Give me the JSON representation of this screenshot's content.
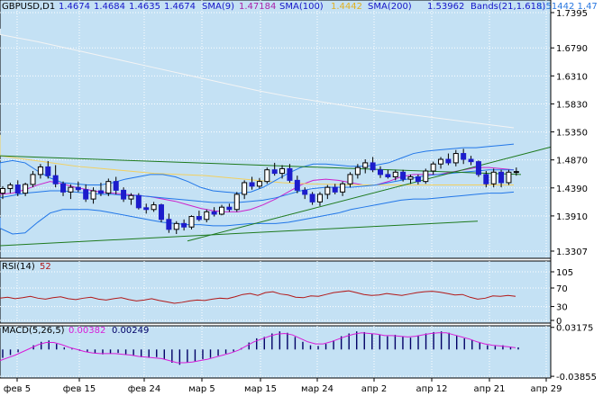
{
  "colors": {
    "chart_bg": "#c4e1f4",
    "panel_bg": "#ffffff",
    "axis_bg": "#ffffff",
    "grid": "#ffffff",
    "candle_bull": "#ffffff",
    "candle_bear": "#1c1ccc",
    "candle_outline": "#000000",
    "sma9": "#cc22cc",
    "sma100": "#f2d060",
    "sma200": "#f4f4f4",
    "bands": "#2277e8",
    "trendline": "#1e7a1e",
    "rsi": "#b21818",
    "macd_main": "#d81bd8",
    "macd_signal_hist": "#000066",
    "text_dark": "#000000",
    "text_blue": "#1515c8"
  },
  "header": {
    "symbol": "GBPUSD,D1",
    "ohlc": [
      "1.4674",
      "1.4684",
      "1.4635",
      "1.4674"
    ],
    "sma9_label": "SMA(9)",
    "sma9_value": "1.47184",
    "sma100_label": "SMA(100)",
    "sma100_value": "1.4442",
    "sma200_label": "SMA(200)",
    "sma200_value": "1.53962",
    "bands_label": "Bands(21,1.618)",
    "bands_values": "1.51442 1.47"
  },
  "rsi_panel": {
    "label": "RSI(14)",
    "value": "52"
  },
  "macd_panel": {
    "label": "MACD(5,26,5)",
    "value_main": "0.00382",
    "value_signal": "0.00249"
  },
  "chart_data": [
    {
      "type": "candlestick",
      "name": "GBPUSD,D1",
      "y_ticks": [
        "1.7395",
        "1.6790",
        "1.6310",
        "1.5830",
        "1.5350",
        "1.4870",
        "1.4390",
        "1.3910",
        "1.3307"
      ],
      "ylim": [
        1.3307,
        1.7395
      ],
      "x_ticks": [
        "фев 5",
        "фев 15",
        "фев 24",
        "мар 5",
        "мар 15",
        "мар 24",
        "апр 2",
        "апр 12",
        "апр 21",
        "апр 29"
      ],
      "grid": true,
      "series": [
        {
          "name": "SMA(9)",
          "start": 1.432,
          "values": [
            1.428,
            1.43,
            1.436,
            1.444,
            1.45,
            1.446,
            1.44,
            1.436,
            1.432,
            1.43,
            1.428,
            1.426,
            1.424,
            1.42,
            1.416,
            1.41,
            1.404,
            1.4,
            1.398,
            1.398,
            1.402,
            1.41,
            1.42,
            1.432,
            1.444,
            1.452,
            1.454,
            1.452,
            1.448,
            1.444,
            1.444,
            1.45,
            1.458,
            1.462,
            1.462,
            1.462,
            1.466,
            1.47,
            1.474,
            1.474,
            1.472,
            1.47
          ]
        },
        {
          "name": "SMA(100)",
          "start": 1.53,
          "values": [
            1.494,
            1.488,
            1.482,
            1.476,
            1.472,
            1.468,
            1.464,
            1.462,
            1.46,
            1.456,
            1.452,
            1.448,
            1.446,
            1.445,
            1.444,
            1.444,
            1.444,
            1.444,
            1.444,
            1.444,
            1.444
          ]
        },
        {
          "name": "SMA(200)",
          "start": 1.712,
          "values": [
            1.702,
            1.69,
            1.676,
            1.662,
            1.648,
            1.634,
            1.62,
            1.606,
            1.594,
            1.584,
            1.574,
            1.566,
            1.558,
            1.55,
            1.542
          ]
        },
        {
          "name": "Bands upper",
          "start": 1.47,
          "values": [
            1.482,
            1.486,
            1.482,
            1.468,
            1.456,
            1.448,
            1.446,
            1.444,
            1.444,
            1.448,
            1.454,
            1.458,
            1.462,
            1.462,
            1.458,
            1.45,
            1.44,
            1.434,
            1.432,
            1.43,
            1.432,
            1.44,
            1.452,
            1.464,
            1.474,
            1.48,
            1.48,
            1.478,
            1.476,
            1.476,
            1.478,
            1.482,
            1.49,
            1.498,
            1.502,
            1.504,
            1.506,
            1.508,
            1.508,
            1.51,
            1.512,
            1.514
          ]
        },
        {
          "name": "Bands middle",
          "start": 1.42,
          "values": [
            1.422,
            1.426,
            1.43,
            1.432,
            1.434,
            1.434,
            1.432,
            1.43,
            1.428,
            1.428,
            1.426,
            1.426,
            1.424,
            1.422,
            1.42,
            1.418,
            1.416,
            1.414,
            1.414,
            1.414,
            1.416,
            1.418,
            1.422,
            1.428,
            1.434,
            1.438,
            1.44,
            1.44,
            1.44,
            1.442,
            1.444,
            1.448,
            1.452,
            1.456,
            1.46,
            1.462,
            1.464,
            1.466,
            1.468,
            1.47,
            1.47,
            1.47
          ]
        },
        {
          "name": "Bands lower",
          "start": 1.388,
          "values": [
            1.37,
            1.36,
            1.362,
            1.38,
            1.396,
            1.402,
            1.402,
            1.402,
            1.4,
            1.396,
            1.392,
            1.388,
            1.384,
            1.38,
            1.378,
            1.376,
            1.376,
            1.374,
            1.374,
            1.376,
            1.378,
            1.378,
            1.378,
            1.38,
            1.384,
            1.388,
            1.392,
            1.396,
            1.402,
            1.406,
            1.41,
            1.414,
            1.418,
            1.42,
            1.42,
            1.422,
            1.424,
            1.426,
            1.428,
            1.43,
            1.43,
            1.432
          ]
        },
        {
          "name": "Trend line 1",
          "values": [
            1.494,
            1.462
          ]
        },
        {
          "name": "Trend line 2",
          "values": [
            1.348,
            1.509
          ]
        },
        {
          "name": "Trend line 3",
          "values": [
            1.34,
            1.382
          ]
        }
      ],
      "candles": [
        {
          "o": 1.43,
          "h": 1.442,
          "l": 1.42,
          "c": 1.438
        },
        {
          "o": 1.438,
          "h": 1.448,
          "l": 1.43,
          "c": 1.444
        },
        {
          "o": 1.444,
          "h": 1.452,
          "l": 1.425,
          "c": 1.43
        },
        {
          "o": 1.43,
          "h": 1.448,
          "l": 1.425,
          "c": 1.445
        },
        {
          "o": 1.445,
          "h": 1.468,
          "l": 1.44,
          "c": 1.462
        },
        {
          "o": 1.462,
          "h": 1.48,
          "l": 1.455,
          "c": 1.475
        },
        {
          "o": 1.475,
          "h": 1.485,
          "l": 1.455,
          "c": 1.46
        },
        {
          "o": 1.46,
          "h": 1.478,
          "l": 1.44,
          "c": 1.446
        },
        {
          "o": 1.446,
          "h": 1.45,
          "l": 1.425,
          "c": 1.432
        },
        {
          "o": 1.432,
          "h": 1.445,
          "l": 1.42,
          "c": 1.44
        },
        {
          "o": 1.44,
          "h": 1.45,
          "l": 1.432,
          "c": 1.436
        },
        {
          "o": 1.436,
          "h": 1.445,
          "l": 1.415,
          "c": 1.42
        },
        {
          "o": 1.42,
          "h": 1.44,
          "l": 1.412,
          "c": 1.434
        },
        {
          "o": 1.434,
          "h": 1.448,
          "l": 1.425,
          "c": 1.43
        },
        {
          "o": 1.43,
          "h": 1.455,
          "l": 1.425,
          "c": 1.45
        },
        {
          "o": 1.45,
          "h": 1.458,
          "l": 1.428,
          "c": 1.435
        },
        {
          "o": 1.435,
          "h": 1.44,
          "l": 1.415,
          "c": 1.42
        },
        {
          "o": 1.42,
          "h": 1.43,
          "l": 1.41,
          "c": 1.426
        },
        {
          "o": 1.426,
          "h": 1.43,
          "l": 1.402,
          "c": 1.405
        },
        {
          "o": 1.405,
          "h": 1.412,
          "l": 1.395,
          "c": 1.402
        },
        {
          "o": 1.402,
          "h": 1.415,
          "l": 1.398,
          "c": 1.41
        },
        {
          "o": 1.41,
          "h": 1.412,
          "l": 1.38,
          "c": 1.385
        },
        {
          "o": 1.385,
          "h": 1.395,
          "l": 1.362,
          "c": 1.368
        },
        {
          "o": 1.368,
          "h": 1.382,
          "l": 1.36,
          "c": 1.378
        },
        {
          "o": 1.378,
          "h": 1.385,
          "l": 1.366,
          "c": 1.372
        },
        {
          "o": 1.372,
          "h": 1.392,
          "l": 1.368,
          "c": 1.39
        },
        {
          "o": 1.39,
          "h": 1.4,
          "l": 1.382,
          "c": 1.385
        },
        {
          "o": 1.385,
          "h": 1.402,
          "l": 1.38,
          "c": 1.398
        },
        {
          "o": 1.398,
          "h": 1.406,
          "l": 1.39,
          "c": 1.394
        },
        {
          "o": 1.394,
          "h": 1.41,
          "l": 1.392,
          "c": 1.406
        },
        {
          "o": 1.406,
          "h": 1.412,
          "l": 1.398,
          "c": 1.402
        },
        {
          "o": 1.402,
          "h": 1.432,
          "l": 1.398,
          "c": 1.428
        },
        {
          "o": 1.428,
          "h": 1.452,
          "l": 1.42,
          "c": 1.448
        },
        {
          "o": 1.448,
          "h": 1.458,
          "l": 1.436,
          "c": 1.442
        },
        {
          "o": 1.442,
          "h": 1.456,
          "l": 1.438,
          "c": 1.45
        },
        {
          "o": 1.45,
          "h": 1.474,
          "l": 1.446,
          "c": 1.47
        },
        {
          "o": 1.47,
          "h": 1.482,
          "l": 1.46,
          "c": 1.464
        },
        {
          "o": 1.464,
          "h": 1.478,
          "l": 1.455,
          "c": 1.472
        },
        {
          "o": 1.472,
          "h": 1.48,
          "l": 1.448,
          "c": 1.452
        },
        {
          "o": 1.452,
          "h": 1.46,
          "l": 1.43,
          "c": 1.435
        },
        {
          "o": 1.435,
          "h": 1.44,
          "l": 1.42,
          "c": 1.428
        },
        {
          "o": 1.428,
          "h": 1.432,
          "l": 1.41,
          "c": 1.415
        },
        {
          "o": 1.415,
          "h": 1.432,
          "l": 1.408,
          "c": 1.428
        },
        {
          "o": 1.428,
          "h": 1.444,
          "l": 1.42,
          "c": 1.44
        },
        {
          "o": 1.44,
          "h": 1.446,
          "l": 1.428,
          "c": 1.432
        },
        {
          "o": 1.432,
          "h": 1.45,
          "l": 1.425,
          "c": 1.446
        },
        {
          "o": 1.446,
          "h": 1.466,
          "l": 1.44,
          "c": 1.462
        },
        {
          "o": 1.462,
          "h": 1.48,
          "l": 1.455,
          "c": 1.474
        },
        {
          "o": 1.474,
          "h": 1.488,
          "l": 1.464,
          "c": 1.482
        },
        {
          "o": 1.482,
          "h": 1.492,
          "l": 1.466,
          "c": 1.47
        },
        {
          "o": 1.47,
          "h": 1.476,
          "l": 1.456,
          "c": 1.462
        },
        {
          "o": 1.462,
          "h": 1.47,
          "l": 1.455,
          "c": 1.458
        },
        {
          "o": 1.458,
          "h": 1.47,
          "l": 1.452,
          "c": 1.466
        },
        {
          "o": 1.466,
          "h": 1.47,
          "l": 1.45,
          "c": 1.454
        },
        {
          "o": 1.454,
          "h": 1.462,
          "l": 1.446,
          "c": 1.458
        },
        {
          "o": 1.458,
          "h": 1.462,
          "l": 1.445,
          "c": 1.45
        },
        {
          "o": 1.45,
          "h": 1.472,
          "l": 1.446,
          "c": 1.468
        },
        {
          "o": 1.468,
          "h": 1.484,
          "l": 1.462,
          "c": 1.48
        },
        {
          "o": 1.48,
          "h": 1.492,
          "l": 1.472,
          "c": 1.488
        },
        {
          "o": 1.488,
          "h": 1.498,
          "l": 1.478,
          "c": 1.482
        },
        {
          "o": 1.482,
          "h": 1.504,
          "l": 1.476,
          "c": 1.498
        },
        {
          "o": 1.498,
          "h": 1.506,
          "l": 1.48,
          "c": 1.488
        },
        {
          "o": 1.488,
          "h": 1.494,
          "l": 1.478,
          "c": 1.484
        },
        {
          "o": 1.484,
          "h": 1.486,
          "l": 1.458,
          "c": 1.462
        },
        {
          "o": 1.462,
          "h": 1.468,
          "l": 1.44,
          "c": 1.446
        },
        {
          "o": 1.446,
          "h": 1.472,
          "l": 1.44,
          "c": 1.466
        },
        {
          "o": 1.466,
          "h": 1.47,
          "l": 1.44,
          "c": 1.448
        },
        {
          "o": 1.448,
          "h": 1.47,
          "l": 1.444,
          "c": 1.466
        },
        {
          "o": 1.466,
          "h": 1.474,
          "l": 1.46,
          "c": 1.467
        }
      ]
    },
    {
      "type": "line",
      "name": "RSI(14)",
      "y_ticks": [
        "105",
        "70",
        "30",
        "0"
      ],
      "ylim": [
        0,
        105
      ],
      "series": [
        {
          "name": "RSI(14)",
          "values": [
            48,
            50,
            47,
            49,
            52,
            48,
            46,
            49,
            51,
            47,
            45,
            48,
            50,
            46,
            44,
            47,
            49,
            45,
            42,
            44,
            47,
            43,
            40,
            37,
            39,
            42,
            44,
            43,
            46,
            48,
            47,
            51,
            56,
            58,
            54,
            60,
            62,
            57,
            55,
            50,
            49,
            53,
            52,
            56,
            60,
            62,
            64,
            60,
            56,
            54,
            55,
            58,
            56,
            54,
            57,
            60,
            62,
            63,
            61,
            58,
            55,
            56,
            50,
            46,
            48,
            53,
            52,
            54,
            52
          ]
        }
      ]
    },
    {
      "type": "bar",
      "name": "MACD(5,26,5)",
      "y_ticks": [
        "0.03175",
        "-0.03855"
      ],
      "ylim": [
        -0.041,
        0.034
      ],
      "series": [
        {
          "name": "MACD histogram",
          "values": [
            -0.012,
            -0.008,
            -0.004,
            0.0,
            0.006,
            0.011,
            0.013,
            0.008,
            0.003,
            0.001,
            -0.002,
            -0.004,
            -0.006,
            -0.007,
            -0.006,
            -0.005,
            -0.007,
            -0.009,
            -0.011,
            -0.012,
            -0.011,
            -0.014,
            -0.019,
            -0.022,
            -0.019,
            -0.017,
            -0.014,
            -0.012,
            -0.009,
            -0.006,
            -0.003,
            0.002,
            0.01,
            0.016,
            0.018,
            0.023,
            0.026,
            0.024,
            0.018,
            0.011,
            0.006,
            0.005,
            0.008,
            0.013,
            0.019,
            0.023,
            0.026,
            0.025,
            0.023,
            0.021,
            0.019,
            0.021,
            0.019,
            0.017,
            0.02,
            0.023,
            0.025,
            0.026,
            0.024,
            0.02,
            0.016,
            0.014,
            0.01,
            0.006,
            0.005,
            0.006,
            0.004,
            0.003
          ]
        },
        {
          "name": "MACD signal",
          "values": [
            -0.016,
            -0.012,
            -0.008,
            -0.003,
            0.002,
            0.007,
            0.01,
            0.01,
            0.007,
            0.003,
            0.0,
            -0.003,
            -0.005,
            -0.006,
            -0.006,
            -0.006,
            -0.007,
            -0.008,
            -0.01,
            -0.011,
            -0.012,
            -0.013,
            -0.016,
            -0.019,
            -0.019,
            -0.018,
            -0.016,
            -0.014,
            -0.011,
            -0.008,
            -0.005,
            -0.001,
            0.005,
            0.011,
            0.015,
            0.019,
            0.022,
            0.023,
            0.021,
            0.016,
            0.011,
            0.008,
            0.008,
            0.011,
            0.015,
            0.019,
            0.022,
            0.024,
            0.023,
            0.022,
            0.02,
            0.02,
            0.019,
            0.018,
            0.019,
            0.021,
            0.023,
            0.024,
            0.024,
            0.021,
            0.018,
            0.015,
            0.011,
            0.008,
            0.006,
            0.005,
            0.004,
            0.0025
          ]
        }
      ]
    }
  ]
}
